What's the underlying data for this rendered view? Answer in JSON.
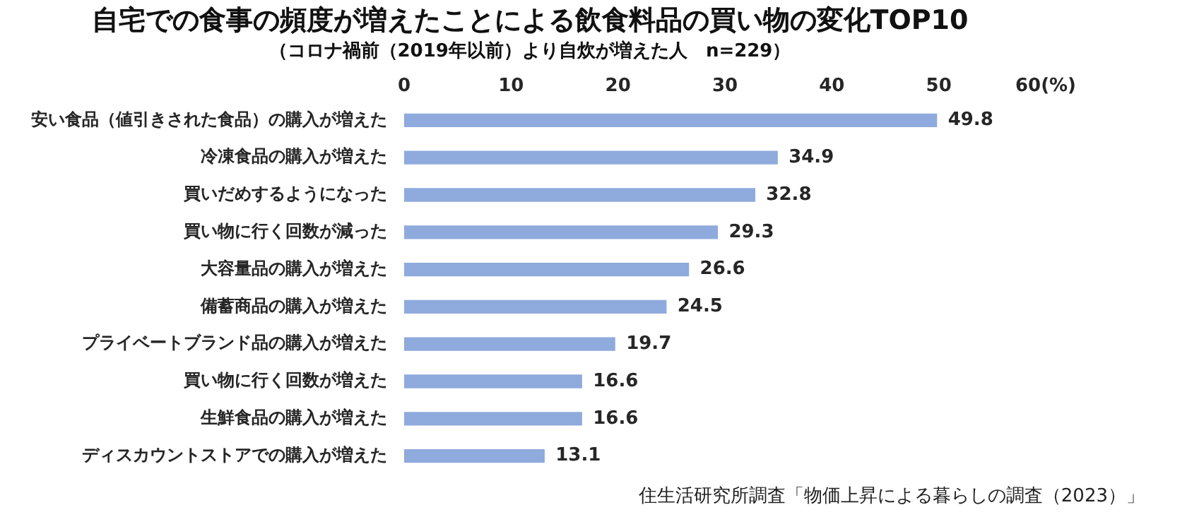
{
  "chart_data": {
    "type": "bar",
    "orientation": "horizontal",
    "title": "自宅での食事の頻度が増えたことによる飲食料品の買い物の変化TOP10",
    "subtitle": "（コロナ禍前（2019年以前）より自炊が増えた人　n=229）",
    "categories": [
      "安い食品（値引きされた食品）の購入が増えた",
      "冷凍食品の購入が増えた",
      "買いだめするようになった",
      "買い物に行く回数が減った",
      "大容量品の購入が増えた",
      "備蓄商品の購入が増えた",
      "プライベートブランド品の購入が増えた",
      "買い物に行く回数が増えた",
      "生鮮食品の購入が増えた",
      "ディスカウントストアでの購入が増えた"
    ],
    "values": [
      49.8,
      34.9,
      32.8,
      29.3,
      26.6,
      24.5,
      19.7,
      16.6,
      16.6,
      13.1
    ],
    "color": "#8faadc",
    "data_labels": true,
    "grid": false,
    "legend": false,
    "xlim": [
      0,
      60
    ],
    "xticks": [
      0,
      10,
      20,
      30,
      40,
      50,
      {
        "value": 60,
        "label": "60(%)"
      }
    ],
    "annotations": [
      "住生活研究所調査「物価上昇による暮らしの調査（2023）」"
    ]
  }
}
